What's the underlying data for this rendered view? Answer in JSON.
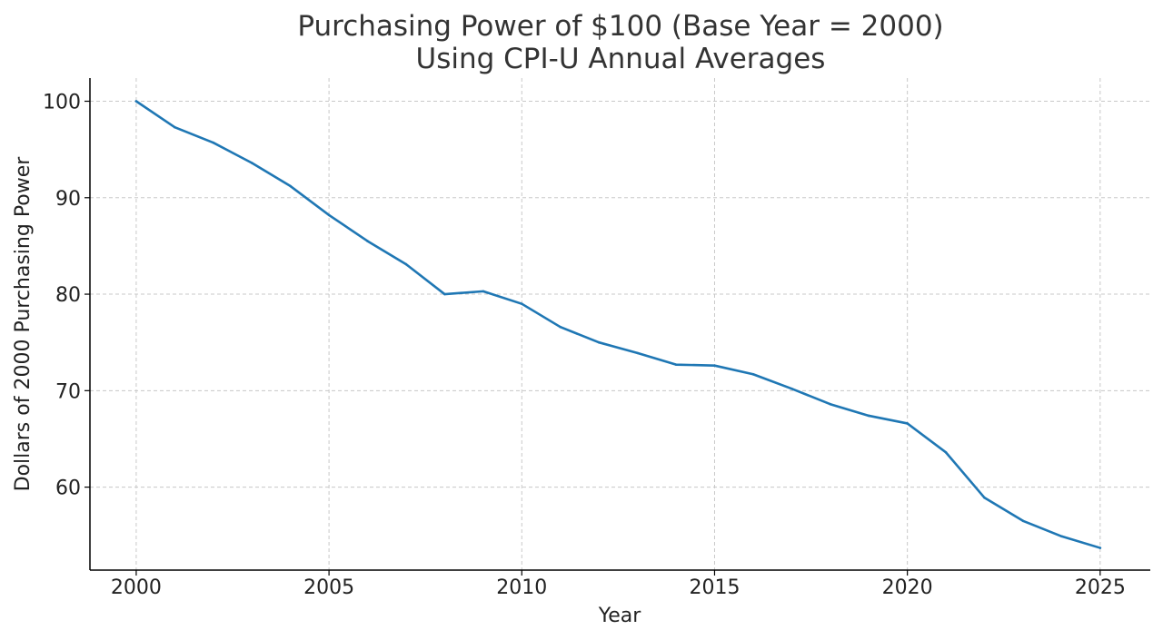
{
  "chart_data": {
    "type": "line",
    "title_lines": [
      "Purchasing Power of $100 (Base Year = 2000)",
      "Using CPI-U Annual Averages"
    ],
    "xlabel": "Year",
    "ylabel": "Dollars of 2000 Purchasing Power",
    "x_ticks": [
      2000,
      2005,
      2010,
      2015,
      2020,
      2025
    ],
    "y_ticks": [
      60,
      70,
      80,
      90,
      100
    ],
    "xlim": [
      1998.8,
      2026.3
    ],
    "ylim": [
      51.4,
      102.4
    ],
    "grid": true,
    "x": [
      2000,
      2001,
      2002,
      2003,
      2004,
      2005,
      2006,
      2007,
      2008,
      2009,
      2010,
      2011,
      2012,
      2013,
      2014,
      2015,
      2016,
      2017,
      2018,
      2019,
      2020,
      2021,
      2022,
      2023,
      2024,
      2025
    ],
    "series": [
      {
        "values": [
          100.0,
          97.3,
          95.7,
          93.6,
          91.2,
          88.2,
          85.5,
          83.1,
          80.0,
          80.3,
          79.0,
          76.6,
          75.0,
          73.9,
          72.7,
          72.6,
          71.7,
          70.2,
          68.6,
          67.4,
          66.6,
          63.6,
          58.9,
          56.5,
          54.9,
          53.7
        ],
        "color": "#1f77b4"
      }
    ]
  }
}
